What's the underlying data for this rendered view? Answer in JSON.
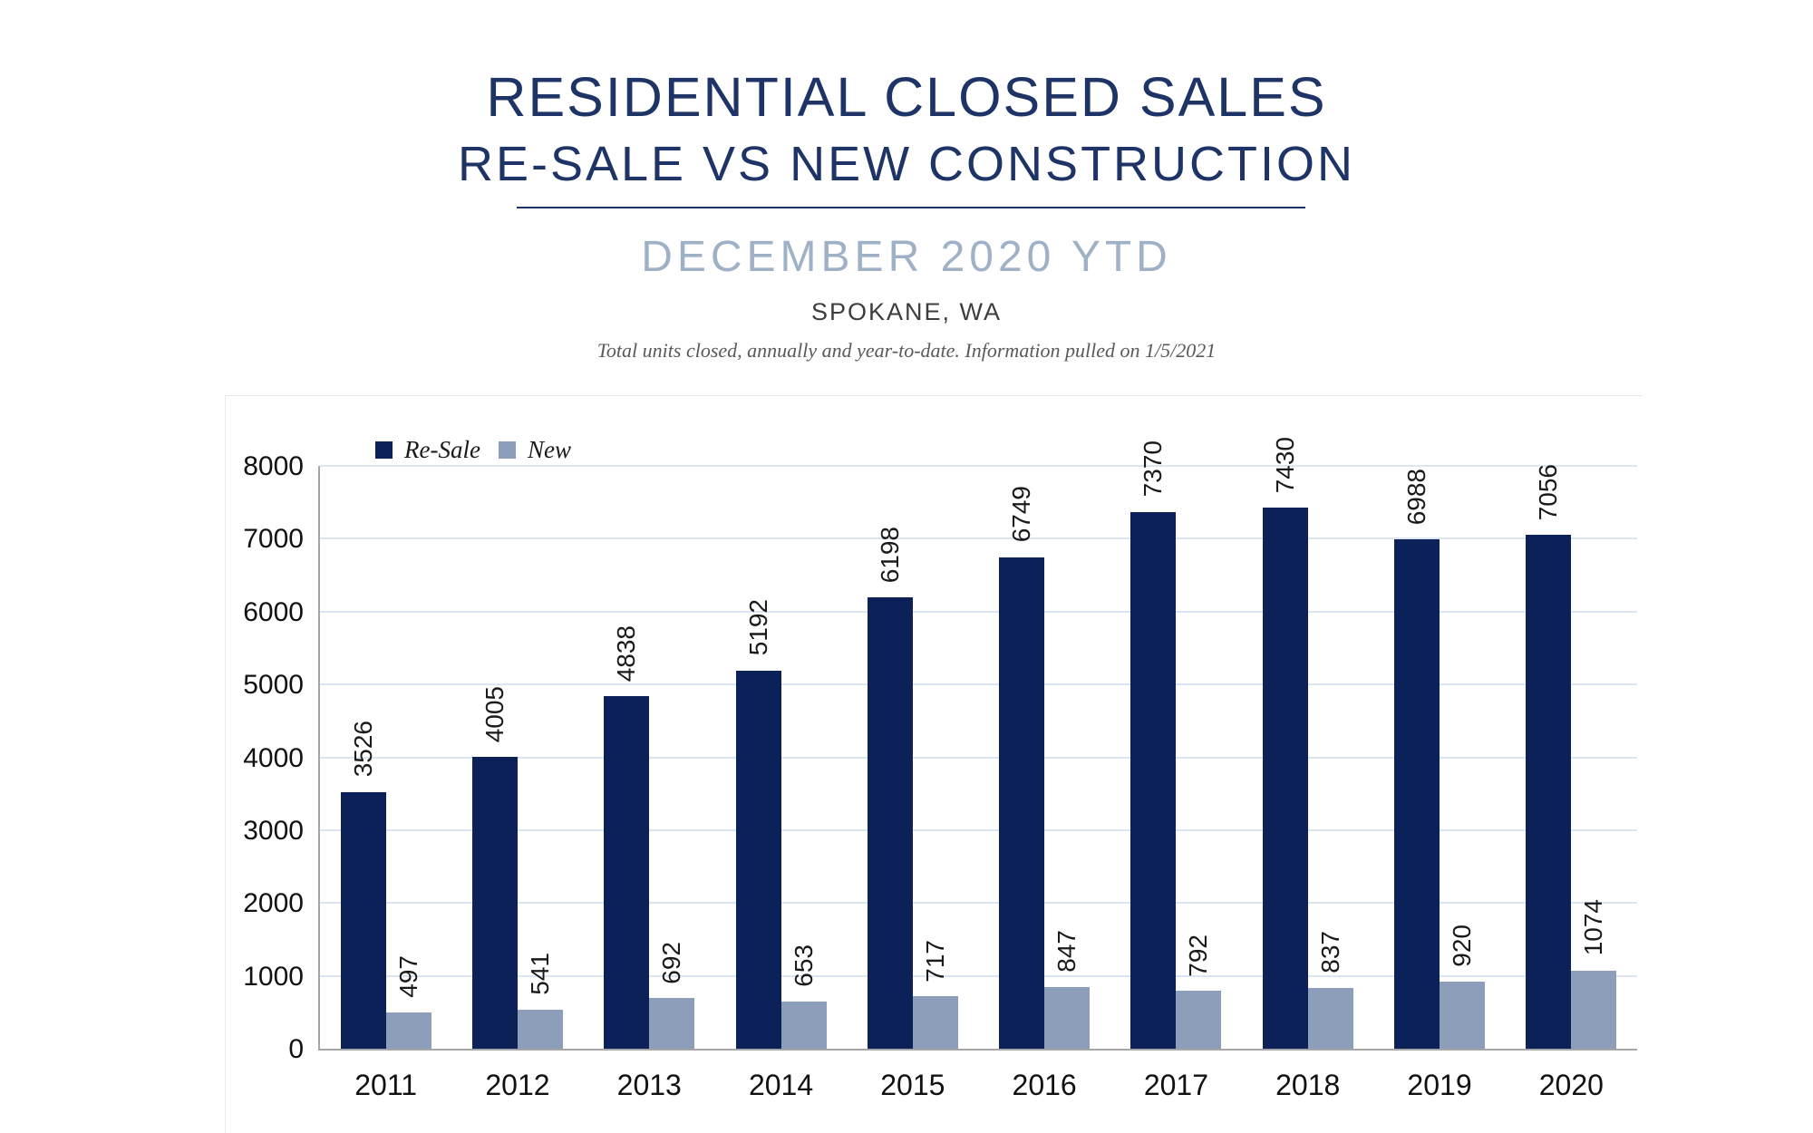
{
  "header": {
    "title": "RESIDENTIAL CLOSED SALES",
    "subtitle": "RE-SALE VS NEW CONSTRUCTION",
    "period": "DECEMBER 2020 YTD",
    "location": "SPOKANE, WA",
    "footnote": "Total units closed, annually and year-to-date.  Information pulled on 1/5/2021"
  },
  "colors": {
    "navy_text": "#1e3467",
    "period_blue": "#9fb1c6",
    "resale_bar": "#0c2158",
    "new_bar": "#8c9eb9",
    "grid_blue": "#dce6f2",
    "axis_gray": "#a6a6a6"
  },
  "chart_data": {
    "type": "bar",
    "title": "RESIDENTIAL CLOSED SALES — RE-SALE VS NEW CONSTRUCTION — DECEMBER 2020 YTD — SPOKANE, WA",
    "categories": [
      "2011",
      "2012",
      "2013",
      "2014",
      "2015",
      "2016",
      "2017",
      "2018",
      "2019",
      "2020"
    ],
    "series": [
      {
        "name": "Re-Sale",
        "values": [
          3526,
          4005,
          4838,
          5192,
          6198,
          6749,
          7370,
          7430,
          6988,
          7056
        ]
      },
      {
        "name": "New",
        "values": [
          497,
          541,
          692,
          653,
          717,
          847,
          792,
          837,
          920,
          1074
        ]
      }
    ],
    "xlabel": "",
    "ylabel": "",
    "ylim": [
      0,
      8000
    ],
    "yticks": [
      0,
      1000,
      2000,
      3000,
      4000,
      5000,
      6000,
      7000,
      8000
    ],
    "grid": "horizontal",
    "legend_position": "top-left",
    "data_labels": "rotated-90"
  }
}
